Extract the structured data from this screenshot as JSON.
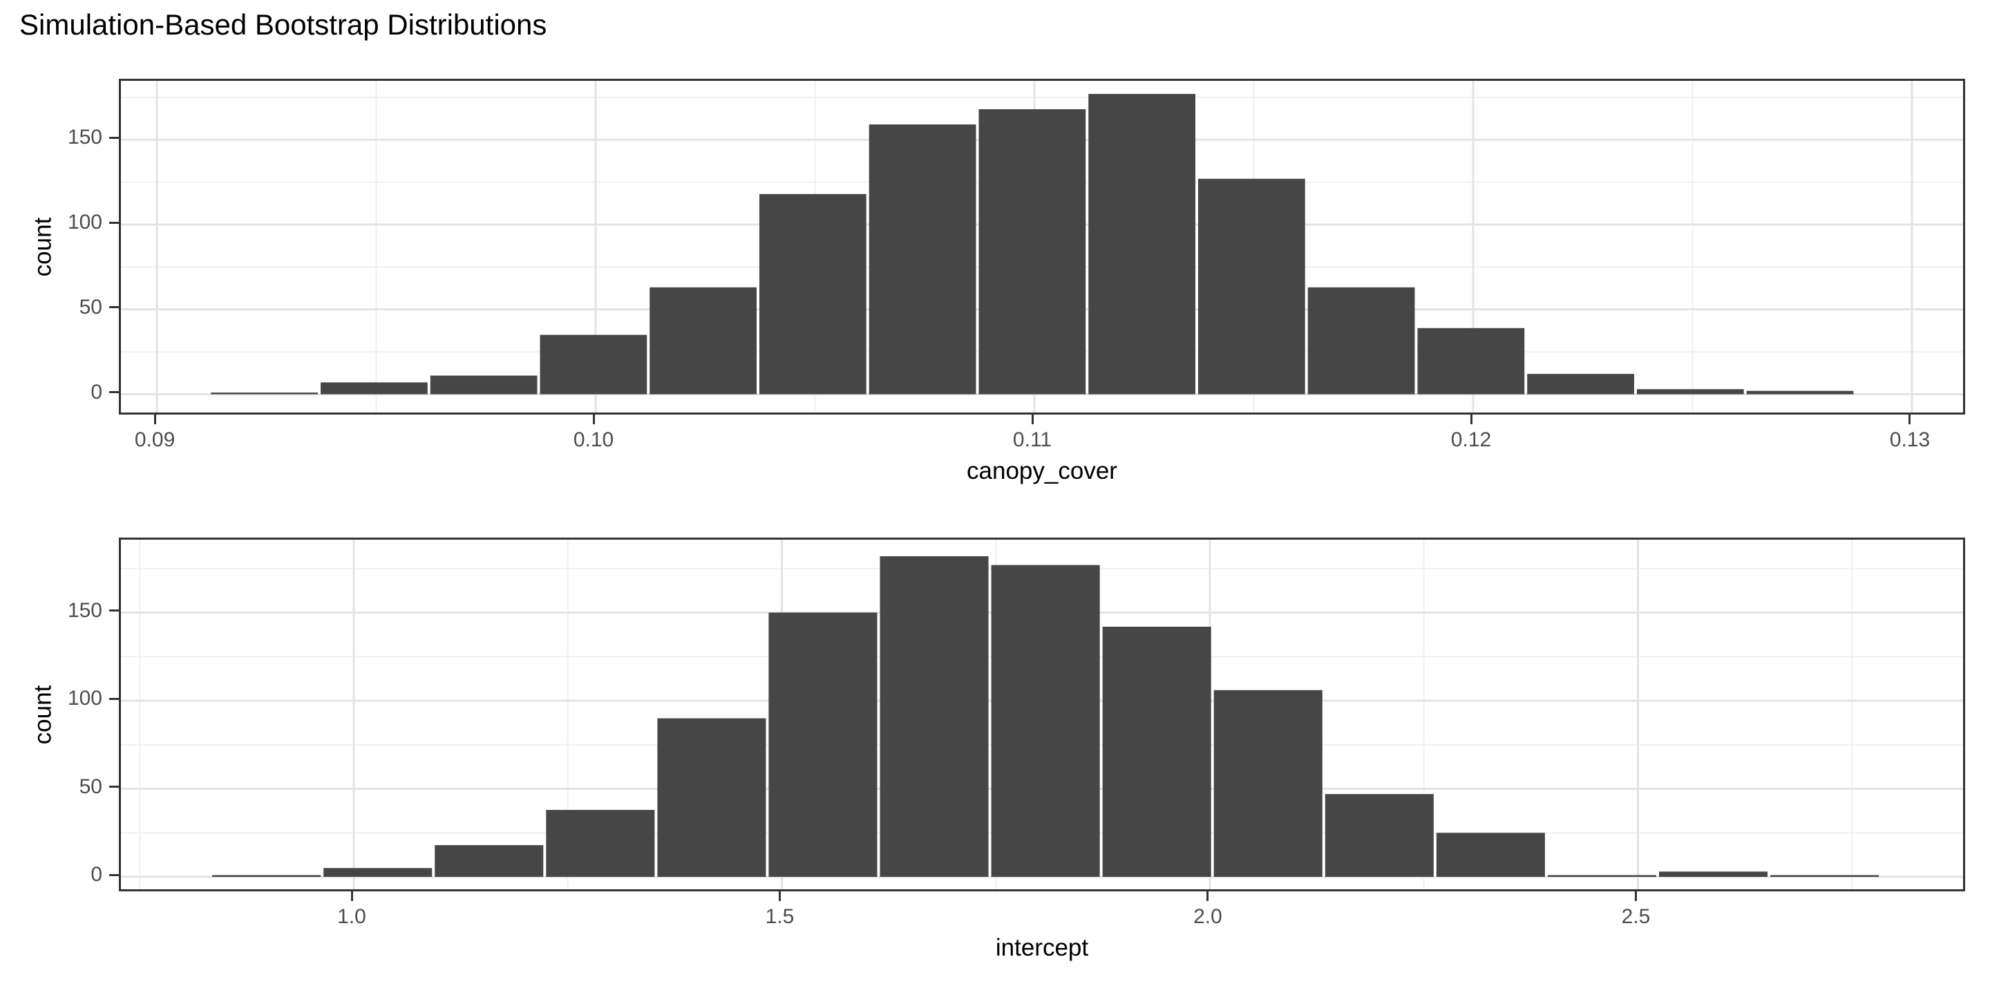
{
  "title": "Simulation-Based Bootstrap Distributions",
  "colors": {
    "bar_fill": "#464646",
    "panel_border": "#333333",
    "grid_major": "#e3e3e3",
    "grid_minor": "#f0f0f0",
    "tick_mark": "#333333",
    "tick_label": "#4d4d4d",
    "text": "#000000",
    "background": "#ffffff"
  },
  "chart_data": [
    {
      "type": "bar",
      "name": "canopy_cover",
      "title": "",
      "xlabel": "canopy_cover",
      "ylabel": "count",
      "bin_start": 0.0912,
      "bin_width": 0.0025,
      "counts": [
        1,
        7,
        11,
        35,
        63,
        118,
        159,
        168,
        177,
        127,
        63,
        39,
        12,
        3,
        2
      ],
      "x_major_ticks": [
        0.09,
        0.1,
        0.11,
        0.12,
        0.13
      ],
      "x_major_labels": [
        "0.09",
        "0.10",
        "0.11",
        "0.12",
        "0.13"
      ],
      "x_minor_ticks": [
        0.095,
        0.105,
        0.115,
        0.125
      ],
      "y_major_ticks": [
        0,
        50,
        100,
        150
      ],
      "y_major_labels": [
        "0",
        "50",
        "100",
        "150"
      ],
      "y_minor_ticks": [
        25,
        75,
        125,
        175
      ],
      "xlim": [
        0.08918,
        0.13126
      ],
      "ylim": [
        -13.2,
        184.7
      ],
      "grid": true,
      "legend": "none"
    },
    {
      "type": "bar",
      "name": "intercept",
      "title": "",
      "xlabel": "intercept",
      "ylabel": "count",
      "bin_start": 0.833,
      "bin_width": 0.13,
      "counts": [
        1,
        5,
        18,
        38,
        90,
        150,
        182,
        177,
        142,
        106,
        47,
        25,
        1,
        3,
        1
      ],
      "x_major_ticks": [
        1.0,
        1.5,
        2.0,
        2.5
      ],
      "x_major_labels": [
        "1.0",
        "1.5",
        "2.0",
        "2.5"
      ],
      "x_minor_ticks": [
        0.75,
        1.25,
        1.75,
        2.25,
        2.75
      ],
      "y_major_ticks": [
        0,
        50,
        100,
        150
      ],
      "y_major_labels": [
        "0",
        "50",
        "100",
        "150"
      ],
      "y_minor_ticks": [
        25,
        75,
        125,
        175
      ],
      "xlim": [
        0.728,
        2.8846
      ],
      "ylim": [
        -9.4,
        191.4
      ],
      "grid": true,
      "legend": "none"
    }
  ]
}
